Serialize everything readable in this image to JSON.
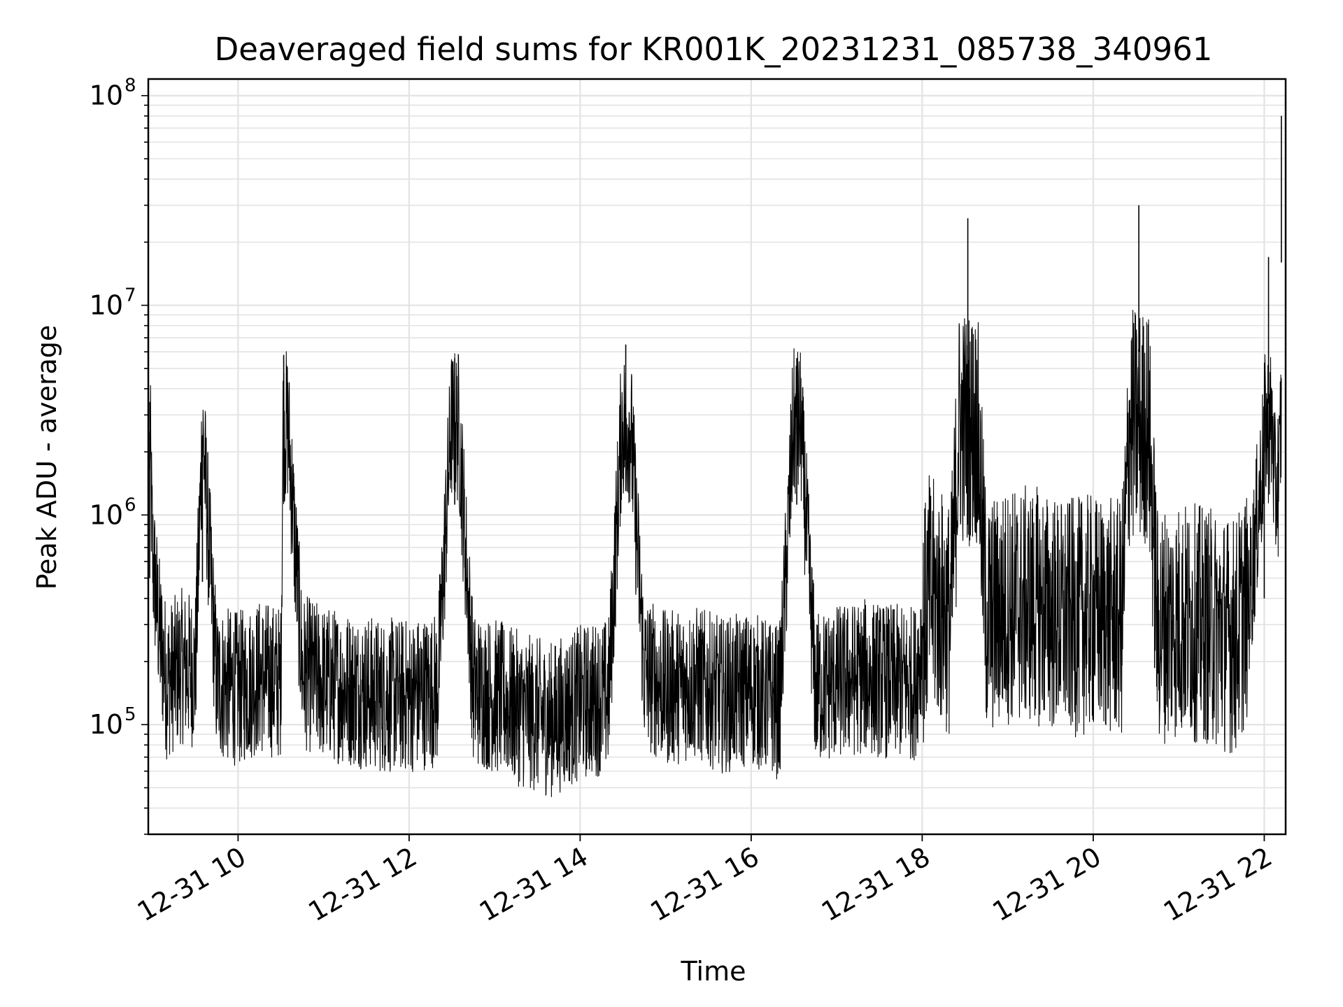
{
  "chart_data": {
    "type": "line",
    "title": "Deaveraged field sums for KR001K_20231231_085738_340961",
    "xlabel": "Time",
    "ylabel": "Peak ADU - average",
    "yscale": "log",
    "grid": true,
    "legend": false,
    "xlim": [
      "2023-12-31 08:57",
      "2023-12-31 22:15"
    ],
    "ylim": [
      30000,
      120000000
    ],
    "x_tick_labels": [
      "12-31 10",
      "12-31 12",
      "12-31 14",
      "12-31 16",
      "12-31 18",
      "12-31 20",
      "12-31 22"
    ],
    "x_ticks": [
      "2023-12-31 10:00",
      "2023-12-31 12:00",
      "2023-12-31 14:00",
      "2023-12-31 16:00",
      "2023-12-31 18:00",
      "2023-12-31 20:00",
      "2023-12-31 22:00"
    ],
    "y_tick_labels": [
      {
        "base": "10",
        "exp": "5",
        "value": 100000
      },
      {
        "base": "10",
        "exp": "6",
        "value": 1000000
      },
      {
        "base": "10",
        "exp": "7",
        "value": 10000000
      },
      {
        "base": "10",
        "exp": "8",
        "value": 100000000
      }
    ],
    "series": [
      {
        "color": "#000000",
        "x": [
          "2023-12-31 08:58",
          "2023-12-31 09:00",
          "2023-12-31 09:05",
          "2023-12-31 09:10",
          "2023-12-31 09:20",
          "2023-12-31 09:30",
          "2023-12-31 09:35",
          "2023-12-31 09:45",
          "2023-12-31 10:00",
          "2023-12-31 10:15",
          "2023-12-31 10:30",
          "2023-12-31 10:32",
          "2023-12-31 10:45",
          "2023-12-31 11:00",
          "2023-12-31 11:20",
          "2023-12-31 11:40",
          "2023-12-31 12:00",
          "2023-12-31 12:20",
          "2023-12-31 12:32",
          "2023-12-31 12:45",
          "2023-12-31 13:00",
          "2023-12-31 13:20",
          "2023-12-31 13:40",
          "2023-12-31 14:00",
          "2023-12-31 14:20",
          "2023-12-31 14:32",
          "2023-12-31 14:45",
          "2023-12-31 15:00",
          "2023-12-31 15:20",
          "2023-12-31 15:40",
          "2023-12-31 16:00",
          "2023-12-31 16:20",
          "2023-12-31 16:32",
          "2023-12-31 16:45",
          "2023-12-31 17:00",
          "2023-12-31 17:20",
          "2023-12-31 17:40",
          "2023-12-31 17:55",
          "2023-12-31 18:05",
          "2023-12-31 18:20",
          "2023-12-31 18:32",
          "2023-12-31 18:45",
          "2023-12-31 19:00",
          "2023-12-31 19:20",
          "2023-12-31 19:40",
          "2023-12-31 20:00",
          "2023-12-31 20:20",
          "2023-12-31 20:32",
          "2023-12-31 20:45",
          "2023-12-31 21:00",
          "2023-12-31 21:20",
          "2023-12-31 21:40",
          "2023-12-31 21:50",
          "2023-12-31 22:00",
          "2023-12-31 22:03",
          "2023-12-31 22:07",
          "2023-12-31 22:11",
          "2023-12-31 22:12"
        ],
        "y": [
          2500000,
          600000,
          250000,
          150000,
          180000,
          170000,
          2400000,
          150000,
          140000,
          160000,
          150000,
          5800000,
          170000,
          150000,
          140000,
          130000,
          130000,
          140000,
          5600000,
          140000,
          130000,
          110000,
          100000,
          120000,
          130000,
          6500000,
          170000,
          140000,
          150000,
          130000,
          140000,
          120000,
          5600000,
          140000,
          150000,
          160000,
          150000,
          150000,
          400000,
          300000,
          26000000,
          300000,
          350000,
          350000,
          300000,
          320000,
          300000,
          30000000,
          280000,
          300000,
          280000,
          250000,
          400000,
          2000000,
          17000000,
          1200000,
          1500000,
          80000000
        ]
      }
    ]
  }
}
